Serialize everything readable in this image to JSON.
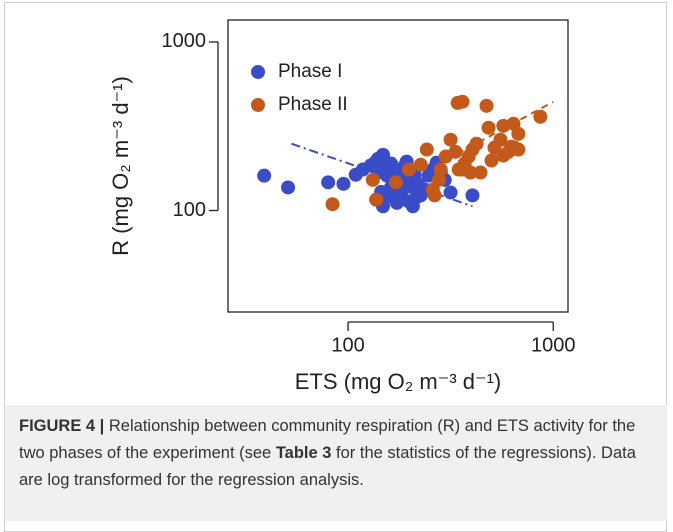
{
  "chart_data": {
    "type": "scatter",
    "x_label": "ETS (mg O₂ m⁻³ d⁻¹)",
    "y_label": "R (mg O₂ m⁻³ d⁻¹)",
    "log_x": true,
    "log_y": true,
    "xlim": [
      26,
      1180
    ],
    "ylim": [
      25,
      1350
    ],
    "xticks": [
      100,
      1000
    ],
    "yticks": [
      100,
      1000
    ],
    "legend": "upper-left",
    "series": [
      {
        "name": "Phase I",
        "color": "#3b4cc8",
        "x": [
          39,
          51,
          80,
          95,
          109,
          118,
          129,
          135,
          140,
          148,
          155,
          162,
          140,
          165,
          177,
          169,
          145,
          158,
          181,
          189,
          193,
          185,
          162,
          173,
          148,
          179,
          202,
          209,
          214,
          198,
          207,
          226,
          237,
          247,
          259,
          270,
          283,
          296,
          316,
          404,
          202,
          211,
          221,
          177,
          155
        ],
        "values": [
          161,
          137,
          147,
          144,
          163,
          175,
          185,
          192,
          203,
          214,
          180,
          190,
          168,
          151,
          141,
          175,
          129,
          121,
          163,
          185,
          195,
          133,
          137,
          111,
          106,
          124,
          151,
          137,
          119,
          113,
          106,
          123,
          133,
          161,
          175,
          192,
          170,
          152,
          128,
          123,
          141,
          163,
          143,
          166,
          161
        ]
      },
      {
        "name": "Phase II",
        "color": "#c4591c",
        "x": [
          84,
          132,
          137,
          171,
          198,
          226,
          242,
          259,
          264,
          277,
          283,
          299,
          316,
          334,
          342,
          361,
          346,
          361,
          370,
          387,
          404,
          423,
          442,
          473,
          484,
          500,
          517,
          553,
          571,
          571,
          605,
          625,
          647,
          676,
          640,
          676,
          865,
          395
        ],
        "values": [
          109,
          152,
          116,
          147,
          175,
          187,
          230,
          133,
          123,
          152,
          175,
          209,
          263,
          223,
          435,
          442,
          175,
          175,
          190,
          209,
          230,
          249,
          168,
          418,
          310,
          198,
          236,
          263,
          318,
          212,
          223,
          239,
          236,
          230,
          327,
          285,
          360,
          168
        ]
      }
    ],
    "trend_lines": [
      {
        "color": "#3b4cc8",
        "style": "dashdot",
        "x": [
          53,
          404
        ],
        "values": [
          249,
          106
        ]
      },
      {
        "color": "#c4591c",
        "style": "dashed",
        "x": [
          132,
          1000
        ],
        "values": [
          116,
          442
        ]
      }
    ]
  },
  "caption": {
    "label": "FIGURE 4 |",
    "text_before": "Relationship between community respiration (R) and ETS activity for the two phases of the experiment (see ",
    "ref": "Table 3",
    "text_after": " for the statistics of the regressions). Data are log transformed for the regression analysis."
  }
}
